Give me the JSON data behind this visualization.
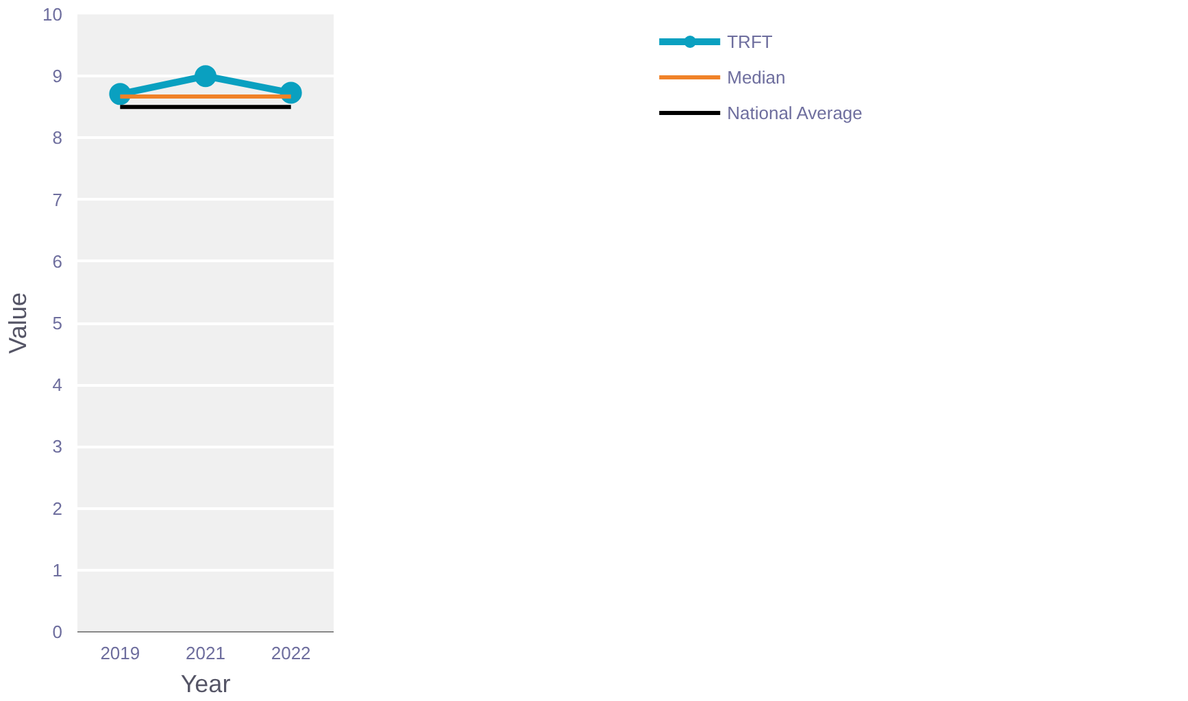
{
  "chart_data": {
    "type": "line",
    "xlabel": "Year",
    "ylabel": "Value",
    "categories": [
      "2019",
      "2021",
      "2022"
    ],
    "series": [
      {
        "name": "TRFT",
        "color": "#0aa0c0",
        "values": [
          8.71,
          9.0,
          8.73
        ],
        "marker": "circle"
      },
      {
        "name": "Median",
        "color": "#f08228",
        "values": [
          8.67,
          8.67,
          8.67
        ],
        "marker": "none"
      },
      {
        "name": "National Average",
        "color": "#000000",
        "values": [
          8.5,
          8.5,
          8.5
        ],
        "marker": "none"
      }
    ],
    "ylim": [
      0,
      10
    ],
    "yticks": [
      0,
      1,
      2,
      3,
      4,
      5,
      6,
      7,
      8,
      9,
      10
    ],
    "grid": "y",
    "legend": "top right"
  }
}
